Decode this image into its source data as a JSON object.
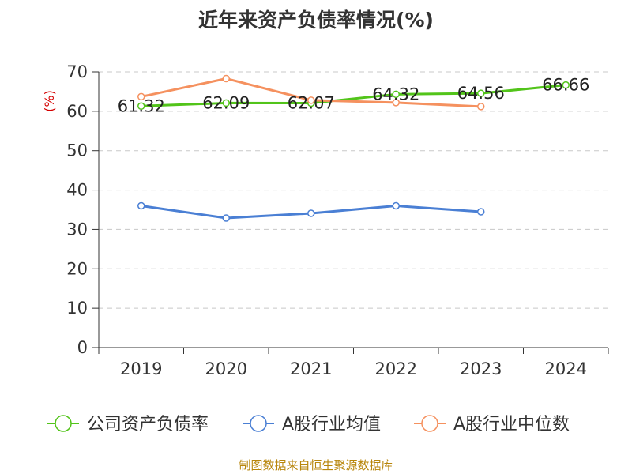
{
  "chart_data": {
    "type": "line",
    "title": "近年来资产负债率情况(%)",
    "ylabel": "(%)",
    "xlabel": "",
    "categories": [
      "2019",
      "2020",
      "2021",
      "2022",
      "2023",
      "2024"
    ],
    "ylim": [
      0,
      70
    ],
    "yticks": [
      0,
      10,
      20,
      30,
      40,
      50,
      60,
      70
    ],
    "grid": true,
    "legend_position": "bottom",
    "series": [
      {
        "name": "公司资产负债率",
        "color": "#52c41a",
        "values": [
          61.32,
          62.09,
          62.07,
          64.32,
          64.56,
          66.66
        ],
        "labels": [
          "61.32",
          "62.09",
          "62.07",
          "64.32",
          "64.56",
          "66.66"
        ]
      },
      {
        "name": "A股行业均值",
        "color": "#4a7fd4",
        "values": [
          36.0,
          32.9,
          34.1,
          36.0,
          34.5,
          null
        ]
      },
      {
        "name": "A股行业中位数",
        "color": "#f5915f",
        "values": [
          63.7,
          68.3,
          62.8,
          62.2,
          61.2,
          null
        ]
      }
    ]
  },
  "source": "制图数据来自恒生聚源数据库"
}
